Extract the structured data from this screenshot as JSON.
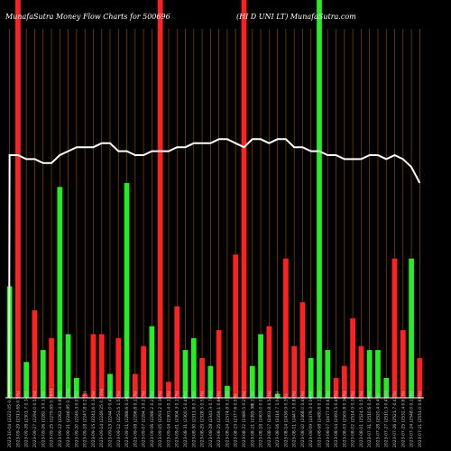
{
  "header": {
    "left": "MunafaSutra  Money Flow  Charts for 500696",
    "right": "(HI D UNI LT) MunafaSutra.com"
  },
  "colors": {
    "background": "#000000",
    "gridline": "#8a4a00",
    "buy": "#22ee22",
    "sell": "#ff2020",
    "price_line": "#ffffff",
    "tick_label": "#cccccc",
    "axis": "#ffffff"
  },
  "chart_data": {
    "type": "bar",
    "title": "",
    "xlabel": "",
    "ylabel": "",
    "grid": true,
    "ylim": [
      0,
      100
    ],
    "center_label": "0",
    "categories": [
      "2023-10-04 (2322.05 0.4%)",
      "2023-09-29 (2313.65 0.5%)",
      "2023-09-28 (2301.7 0.34%)",
      "2023-09-27 (2294.0 0.52%)",
      "2023-09-26 (2282.3 0.12%)",
      "2023-09-25 (2279.65 0.76%)",
      "2023-09-22 (2262.4 0.69%)",
      "2023-09-21 (2246.85 0.11%)",
      "2023-09-20 (2249.3 0.07%)",
      "2023-09-18 (2247.8 0.27%)",
      "2023-09-15 (2241.6 0.34%)",
      "2023-09-14 (2249.25 0.23%)",
      "2023-09-13 (2244.0 0.42%)",
      "2023-09-12 (2253.5 1.53%)",
      "2023-09-11 (2288.6 0.36%)",
      "2023-09-08 (2296.8 0.11%)",
      "2023-09-07 (2294.3 0.27%)",
      "2023-09-06 (2288.2 0.22%)",
      "2023-09-05 (2293.2 0.36%)",
      "2023-09-04 (2301.4 0.13%)",
      "2023-09-01 (2304.3 0.17%)",
      "2023-08-31 (2300.5 0.49%)",
      "2023-08-30 (2311.8 0.72%)",
      "2023-08-29 (2328.5 0.55%)",
      "2023-08-28 (2341.3 0.76%)",
      "2023-08-25 (2359.1 0.66%)",
      "2023-08-24 (2374.8 0.12%)",
      "2023-08-23 (2377.6 0.5%)",
      "2023-08-22 (2389.5 0.25%)",
      "2023-08-21 (2395.5 0.31%)",
      "2023-08-18 (2403.0 0.05%)",
      "2023-08-17 (2401.8 0.54%)",
      "2023-08-16 (2414.7 1.04%)",
      "2023-08-14 (2439.9 0.3%)",
      "2023-08-11 (2447.3 0.84%)",
      "2023-08-10 (2468.0 0.46%)",
      "2023-08-09 (2479.3 0.06%)",
      "2023-08-08 (2480.8 0.12%)",
      "2023-08-07 (2477.8 0.63%)",
      "2023-08-04 (2493.5 0.49%)",
      "2023-08-03 (2505.8 0.36%)",
      "2023-08-02 (2514.9 0.38%)",
      "2023-08-01 (2524.5 0.55%)",
      "2023-07-31 (2510.6 0.39%)",
      "2023-07-28 (2520.4 0.4%)",
      "2023-07-27 (2510.3 0.45%)",
      "2023-07-26 (2521.7 0.42%)",
      "2023-07-25 (2532.4 0.61%)",
      "2023-07-24 (2548.0 0.12%)",
      "2023-07-21 (2551.0 0.69%)"
    ],
    "series": [
      {
        "values": [
          28,
          100,
          9,
          22,
          12,
          15,
          53,
          16,
          5,
          1,
          16,
          16,
          6,
          15,
          54,
          6,
          13,
          18,
          100,
          4,
          23,
          12,
          15,
          10,
          8,
          17,
          3,
          36,
          100,
          8,
          16,
          18,
          1,
          35,
          13,
          24,
          10,
          100,
          12,
          5,
          8,
          20,
          13,
          12,
          12,
          5,
          35,
          17,
          35,
          10
        ],
        "directions": [
          "buy",
          "sell",
          "buy",
          "sell",
          "buy",
          "sell",
          "buy",
          "buy",
          "buy",
          "sell",
          "sell",
          "sell",
          "buy",
          "sell",
          "buy",
          "sell",
          "sell",
          "buy",
          "sell",
          "sell",
          "sell",
          "buy",
          "buy",
          "sell",
          "buy",
          "sell",
          "buy",
          "sell",
          "sell",
          "buy",
          "buy",
          "sell",
          "buy",
          "sell",
          "sell",
          "sell",
          "buy",
          "buy",
          "buy",
          "sell",
          "sell",
          "sell",
          "sell",
          "buy",
          "buy",
          "buy",
          "sell",
          "sell",
          "buy",
          "sell"
        ]
      }
    ],
    "price_line": [
      61,
      61,
      60,
      60,
      59,
      59,
      61,
      62,
      63,
      63,
      63,
      64,
      64,
      62,
      62,
      61,
      61,
      62,
      62,
      62,
      63,
      63,
      64,
      64,
      64,
      65,
      65,
      64,
      63,
      65,
      65,
      64,
      65,
      65,
      63,
      63,
      62,
      62,
      61,
      61,
      60,
      60,
      60,
      61,
      61,
      60,
      61,
      60,
      58,
      54
    ]
  }
}
